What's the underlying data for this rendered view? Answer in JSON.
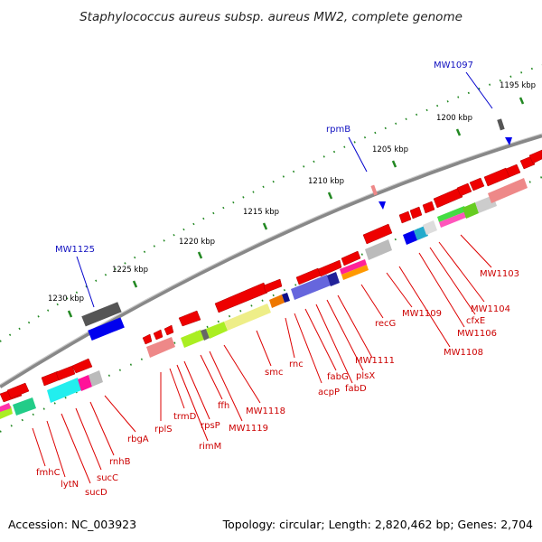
{
  "title": "Staphylococcus aureus subsp. aureus MW2, complete genome",
  "footer": {
    "accession": "Accession: NC_003923",
    "summary": "Topology: circular; Length: 2,820,462 bp; Genes: 2,704"
  },
  "colors": {
    "gene_arrow": "#ee0000",
    "backbone": "#888888",
    "tick": "#228822",
    "callout_gene": "#dd0000",
    "callout_other": "#0000cc"
  },
  "ruler_labels": [
    "1230 kbp",
    "1225 kbp",
    "1220 kbp",
    "1215 kbp",
    "1210 kbp",
    "1205 kbp",
    "1200 kbp",
    "1195 kbp"
  ],
  "top_callouts": [
    {
      "label": "MW1125",
      "color": "blue"
    },
    {
      "label": "rpmB",
      "color": "blue"
    },
    {
      "label": "MW1097",
      "color": "blue"
    }
  ],
  "bottom_labels": [
    "fmhC",
    "lytN",
    "sucD",
    "sucC",
    "rnhB",
    "rbgA",
    "rplS",
    "trmD",
    "rimM",
    "rpsP",
    "ffh",
    "MW1119",
    "MW1118",
    "smc",
    "rnc",
    "acpP",
    "fabG",
    "fabD",
    "plsX",
    "MW1111",
    "recG",
    "MW1109",
    "MW1108",
    "MW1106",
    "cfxE",
    "MW1104",
    "MW1103"
  ]
}
